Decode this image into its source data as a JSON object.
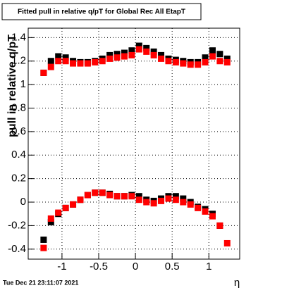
{
  "chart_data": {
    "type": "scatter",
    "title": "Fitted pull in relative q/pT for Global Rec All EtapT",
    "y_label": "pull in relative q/pT",
    "x_label": "η",
    "timestamp": "Tue Dec 21 23:11:07 2021",
    "x": [
      -1.25,
      -1.15,
      -1.05,
      -0.95,
      -0.85,
      -0.75,
      -0.65,
      -0.55,
      -0.45,
      -0.35,
      -0.25,
      -0.15,
      -0.05,
      0.05,
      0.15,
      0.25,
      0.35,
      0.45,
      0.55,
      0.65,
      0.75,
      0.85,
      0.95,
      1.05,
      1.15,
      1.25
    ],
    "series": [
      {
        "color": "#000000",
        "values": [
          1.1,
          1.2,
          1.24,
          1.23,
          1.2,
          1.19,
          1.19,
          1.2,
          1.22,
          1.25,
          1.26,
          1.27,
          1.29,
          1.33,
          1.31,
          1.28,
          1.25,
          1.22,
          1.21,
          1.2,
          1.19,
          1.19,
          1.23,
          1.29,
          1.26,
          1.22
        ]
      },
      {
        "color": "#ff0000",
        "values": [
          1.1,
          1.15,
          1.2,
          1.2,
          1.18,
          1.18,
          1.18,
          1.19,
          1.2,
          1.22,
          1.23,
          1.24,
          1.25,
          1.3,
          1.28,
          1.25,
          1.22,
          1.2,
          1.19,
          1.18,
          1.17,
          1.17,
          1.19,
          1.24,
          1.2,
          1.19
        ]
      },
      {
        "color": "#000000",
        "values": [
          -0.32,
          -0.17,
          -0.1,
          -0.05,
          -0.02,
          0.02,
          0.06,
          0.08,
          0.08,
          0.07,
          0.05,
          0.05,
          0.06,
          0.05,
          0.02,
          0.01,
          0.03,
          0.05,
          0.05,
          0.03,
          0.0,
          -0.04,
          -0.06,
          -0.1,
          -0.2,
          null
        ]
      },
      {
        "color": "#ff0000",
        "values": [
          -0.39,
          -0.14,
          -0.09,
          -0.05,
          -0.02,
          0.02,
          0.06,
          0.08,
          0.08,
          0.06,
          0.05,
          0.05,
          0.05,
          0.02,
          0.0,
          -0.01,
          0.01,
          0.03,
          0.02,
          0.0,
          -0.02,
          -0.05,
          -0.08,
          -0.12,
          -0.2,
          -0.35
        ]
      }
    ],
    "xlim": [
      -1.46,
      1.42
    ],
    "xticks": [
      -1,
      -0.5,
      0,
      0.5,
      1
    ],
    "ylim": [
      -0.485,
      1.48
    ],
    "yticks": [
      -0.4,
      -0.2,
      0,
      0.2,
      0.4,
      0.6,
      0.8,
      1,
      1.2,
      1.4
    ],
    "grid": true
  }
}
